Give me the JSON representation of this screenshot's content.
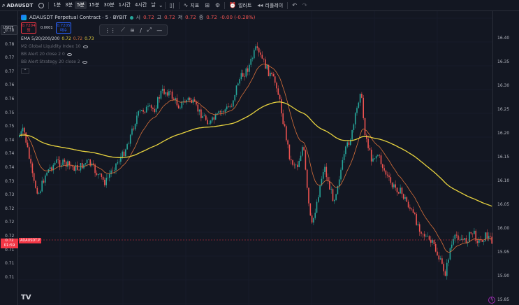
{
  "toolbar": {
    "symbol": "ADAUSDT",
    "timeframes": [
      "1분",
      "3분",
      "5분",
      "15분",
      "30분",
      "1시간",
      "4시간",
      "날"
    ],
    "active_timeframe": "5분",
    "indicators_label": "지표",
    "alert_label": "얼러트",
    "replay_label": "리플레이"
  },
  "legend": {
    "title": "ADAUSDT Perpetual Contract · 5 · BYBIT",
    "open_key": "시",
    "open": "0.72",
    "high_key": "고",
    "high": "0.72",
    "low_key": "저",
    "low": "0.72",
    "close_key": "종",
    "close": "0.72",
    "change": "-0.00 (-0.28%)"
  },
  "trade": {
    "sell_price": "0.7204",
    "sell_label": "팜",
    "spread": "0.0001",
    "buy_price": "0.7205",
    "buy_label": "매수"
  },
  "indicators": [
    {
      "name": "EMA 5/20/200/200",
      "values": [
        "0.72",
        "0.72",
        "0.73"
      ]
    },
    {
      "name": "M2 Global Liquidity Index 10"
    },
    {
      "name": "BB Alert 20 close 2 0"
    },
    {
      "name": "BB Alert Strategy 20 close 2"
    }
  ],
  "left_axis": {
    "currency": "USDT",
    "labels": [
      "0.78",
      "0.78",
      "0.77",
      "0.77",
      "0.76",
      "0.76",
      "0.75",
      "0.75",
      "0.74",
      "0.74",
      "0.74",
      "0.73",
      "0.73",
      "0.72",
      "0.72",
      "0.72",
      "0.71",
      "0.71",
      "0.71"
    ]
  },
  "right_axis": {
    "labels": [
      "16.40",
      "16.35",
      "16.30",
      "16.25",
      "16.20",
      "16.15",
      "16.10",
      "16.05",
      "16.00",
      "15.95",
      "15.90",
      "15.85"
    ]
  },
  "price_tag": {
    "price": "0.72",
    "countdown": "01:59"
  },
  "symbol_tag": "ADAUSDT.P",
  "logo": "TV",
  "colors": {
    "background": "#131722",
    "up": "#26a69a",
    "down": "#ef5350",
    "ema_long": "#e8d33f",
    "ema_short": "#d9703a"
  }
}
